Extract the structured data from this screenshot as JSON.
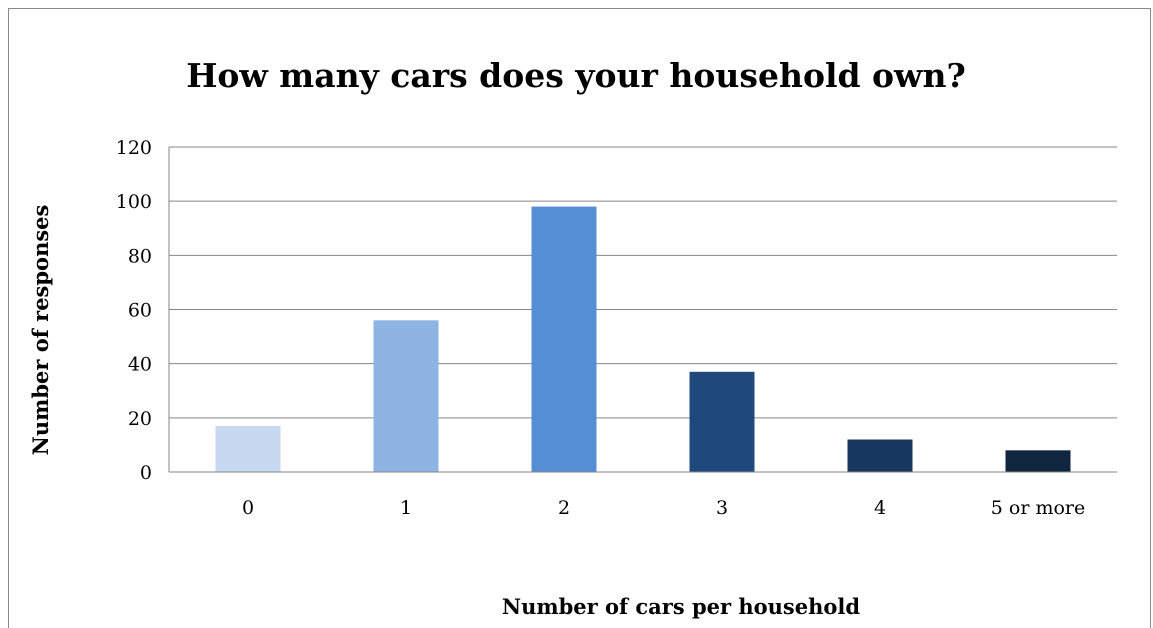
{
  "chart_data": {
    "type": "bar",
    "title": "How many cars does your household own?",
    "xlabel": "Number of cars per household",
    "ylabel": "Number of responses",
    "categories": [
      "0",
      "1",
      "2",
      "3",
      "4",
      "5 or more"
    ],
    "values": [
      17,
      56,
      98,
      37,
      12,
      8
    ],
    "ylim": [
      0,
      120
    ],
    "yticks": [
      "0",
      "20",
      "40",
      "60",
      "80",
      "100",
      "120"
    ],
    "grid": true,
    "legend": "none",
    "colors": [
      "#c6d9f1",
      "#8eb4e3",
      "#558ed5",
      "#1f497d",
      "#17375e",
      "#10253f"
    ],
    "gridline_color": "#868686"
  }
}
